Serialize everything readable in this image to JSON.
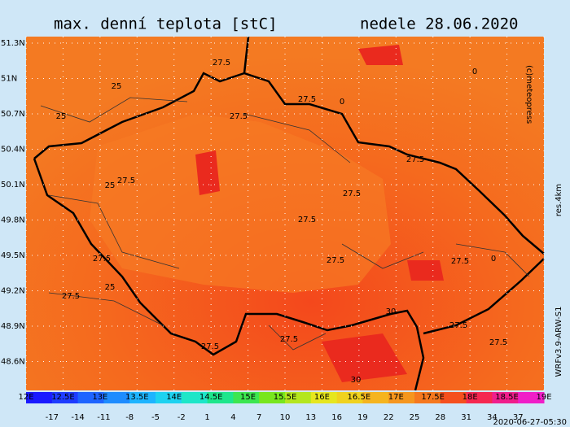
{
  "header": {
    "title": "max. denní teplota [stC]",
    "date": "nedele 28.06.2020"
  },
  "lat_labels": [
    "51.3N",
    "51N",
    "50.7N",
    "50.4N",
    "50.1N",
    "49.8N",
    "49.5N",
    "49.2N",
    "48.9N",
    "48.6N"
  ],
  "lon_labels": [
    "12E",
    "12.5E",
    "13E",
    "13.5E",
    "14E",
    "14.5E",
    "15E",
    "15.5E",
    "16E",
    "16.5E",
    "17E",
    "17.5E",
    "18E",
    "18.5E",
    "19E"
  ],
  "colorbar": {
    "labels": [
      "-17",
      "-14",
      "-11",
      "-8",
      "-5",
      "-2",
      "1",
      "4",
      "7",
      "10",
      "13",
      "16",
      "19",
      "22",
      "25",
      "28",
      "31",
      "34",
      "37"
    ],
    "colors": [
      "#1a1aff",
      "#1e3cff",
      "#1e64ff",
      "#1e8cff",
      "#1eb4ff",
      "#1ed2f0",
      "#1ee6c8",
      "#1ee68c",
      "#3ce650",
      "#78e61e",
      "#b4e61e",
      "#e6e61e",
      "#f0d21e",
      "#f5b41e",
      "#f5961e",
      "#f5781e",
      "#f5501e",
      "#f52850",
      "#f01e8c",
      "#f01ec8"
    ]
  },
  "contour_labels": [
    "27.5",
    "25",
    "25",
    "27.5",
    "27.5",
    "27.5",
    "25",
    "27.5",
    "27.5",
    "27.5",
    "27.5",
    "27.5",
    "27.5",
    "27.5",
    "25",
    "27.5",
    "30",
    "27.5",
    "27.5",
    "27.5",
    "30",
    "0",
    "0",
    "0"
  ],
  "side": {
    "copyright": "(c)meteopress",
    "resolution": "res.4km",
    "model": "WRFv3.9-ARW-S1",
    "timestamp": "2020-06-27-05:30"
  }
}
